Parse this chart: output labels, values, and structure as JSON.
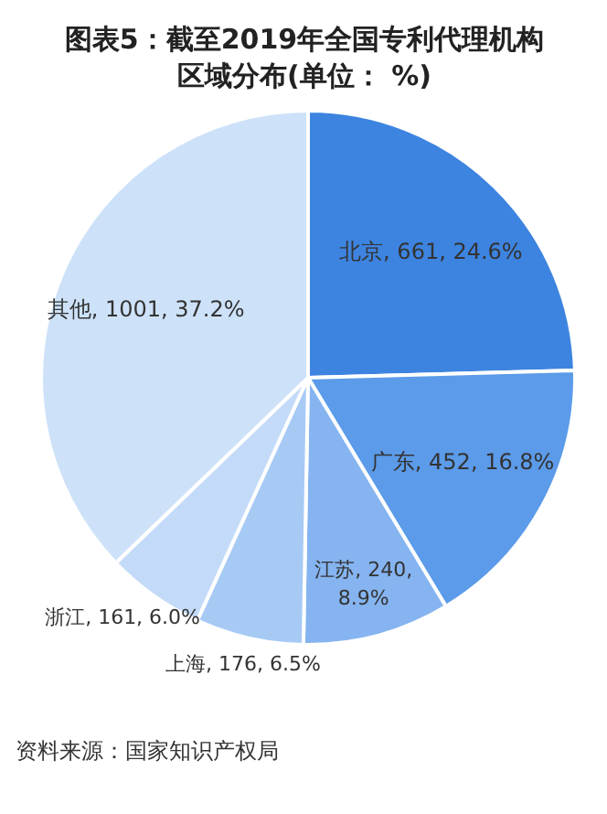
{
  "chart_data": {
    "type": "pie",
    "title": "图表5：截至2019年全国专利代理机构区域分布(单位： %)",
    "categories": [
      "北京",
      "广东",
      "江苏",
      "上海",
      "浙江",
      "其他"
    ],
    "values": [
      661,
      452,
      240,
      176,
      161,
      1001
    ],
    "value_labels": [
      "661, 24.6%",
      "452, 16.8%",
      "240, 8.9%",
      "176, 6.5%",
      "161, 6.0%",
      "1001, 37.2%"
    ],
    "colors": [
      "#3d84e0",
      "#5b9be9",
      "#85b4f0",
      "#a7caf5",
      "#c3dbf8",
      "#cde2f9"
    ],
    "annotations": [
      "资料来源：国家知识产权局"
    ]
  }
}
